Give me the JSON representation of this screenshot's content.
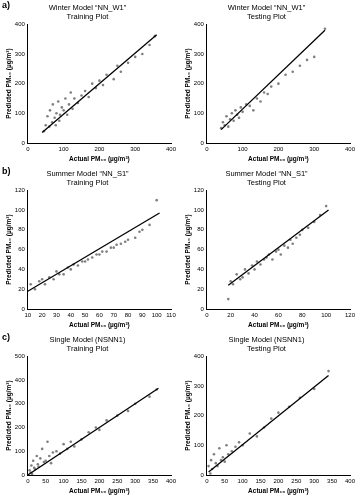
{
  "chart_data": [
    {
      "type": "scatter",
      "annotation": "a)",
      "title": [
        "Winter Model “NN_W1”",
        "Training Plot"
      ],
      "x_label": "Actual PM₁₀ (µg/m³)",
      "y_label": "Predicted PM₁₀ (µg/m³)",
      "xlim": [
        0,
        400
      ],
      "xticks": [
        0,
        100,
        200,
        300,
        400
      ],
      "ylim": [
        0,
        400
      ],
      "yticks": [
        0,
        100,
        200,
        300,
        400
      ],
      "grid": false,
      "series": [
        {
          "type": "scatter",
          "color": "#7f7f7f",
          "marker": "circle",
          "x": [
            45,
            50,
            55,
            60,
            62,
            68,
            70,
            75,
            78,
            80,
            85,
            88,
            90,
            95,
            100,
            105,
            110,
            115,
            120,
            125,
            130,
            140,
            150,
            160,
            170,
            180,
            190,
            200,
            210,
            220,
            240,
            250,
            260,
            280,
            300,
            320,
            340,
            355
          ],
          "values": [
            40,
            60,
            90,
            55,
            110,
            70,
            130,
            85,
            60,
            100,
            140,
            75,
            95,
            120,
            110,
            150,
            95,
            130,
            170,
            115,
            150,
            135,
            160,
            175,
            155,
            200,
            185,
            210,
            195,
            230,
            215,
            260,
            240,
            270,
            290,
            300,
            330,
            360
          ]
        },
        {
          "type": "line",
          "color": "#000000",
          "line_style": "solid",
          "x": [
            40,
            360
          ],
          "values": [
            35,
            365
          ]
        }
      ]
    },
    {
      "type": "scatter",
      "title": [
        "Winter Model “NN_W1”",
        "Testing Plot"
      ],
      "x_label": "Actual PM₁₀ (µg/m³)",
      "y_label": "Predicted PM₁₀ (µg/m³)",
      "xlim": [
        0,
        400
      ],
      "xticks": [
        0,
        100,
        200,
        300,
        400
      ],
      "ylim": [
        0,
        400
      ],
      "yticks": [
        0,
        100,
        200,
        300,
        400
      ],
      "grid": false,
      "series": [
        {
          "type": "scatter",
          "color": "#7f7f7f",
          "marker": "circle",
          "x": [
            40,
            45,
            50,
            55,
            60,
            65,
            70,
            75,
            80,
            85,
            90,
            95,
            100,
            110,
            120,
            130,
            140,
            150,
            160,
            170,
            180,
            200,
            220,
            240,
            260,
            280,
            300,
            330
          ],
          "values": [
            50,
            70,
            60,
            90,
            55,
            80,
            100,
            75,
            110,
            95,
            85,
            120,
            105,
            130,
            125,
            110,
            150,
            140,
            170,
            165,
            190,
            200,
            230,
            240,
            260,
            280,
            290,
            385
          ]
        },
        {
          "type": "line",
          "color": "#000000",
          "line_style": "solid",
          "x": [
            40,
            330
          ],
          "values": [
            45,
            380
          ]
        }
      ]
    },
    {
      "type": "scatter",
      "annotation": "b)",
      "title": [
        "Summer Model “NN_S1”",
        "Training Plot"
      ],
      "x_label": "Actual PM₁₀ (µg/m³)",
      "y_label": "Predicted PM₁₀ (µg/m³)",
      "xlim": [
        10,
        110
      ],
      "xticks": [
        10,
        20,
        30,
        40,
        50,
        60,
        70,
        80,
        90,
        100,
        110
      ],
      "ylim": [
        0,
        120
      ],
      "yticks": [
        0,
        20,
        40,
        60,
        80,
        100,
        120
      ],
      "grid": false,
      "series": [
        {
          "type": "scatter",
          "color": "#7f7f7f",
          "marker": "circle",
          "x": [
            12,
            15,
            18,
            20,
            22,
            25,
            28,
            30,
            32,
            35,
            38,
            40,
            42,
            45,
            48,
            50,
            52,
            55,
            58,
            60,
            62,
            65,
            68,
            70,
            72,
            75,
            78,
            80,
            85,
            88,
            90,
            95,
            100
          ],
          "values": [
            25,
            20,
            28,
            30,
            25,
            32,
            30,
            38,
            35,
            35,
            42,
            40,
            45,
            44,
            48,
            48,
            50,
            52,
            55,
            55,
            58,
            58,
            62,
            62,
            65,
            66,
            68,
            70,
            72,
            78,
            80,
            85,
            110
          ]
        },
        {
          "type": "line",
          "color": "#000000",
          "line_style": "solid",
          "x": [
            10,
            102
          ],
          "values": [
            18,
            97
          ]
        }
      ]
    },
    {
      "type": "scatter",
      "title": [
        "Summer Model “NN_S1”",
        "Testing Plot"
      ],
      "x_label": "Actual PM₁₀ (µg/m³)",
      "y_label": "Predicted PM₁₀ (µg/m³)",
      "xlim": [
        0,
        120
      ],
      "xticks": [
        0,
        20,
        40,
        60,
        80,
        100,
        120
      ],
      "ylim": [
        0,
        120
      ],
      "yticks": [
        0,
        20,
        40,
        60,
        80,
        100,
        120
      ],
      "grid": false,
      "series": [
        {
          "type": "scatter",
          "color": "#7f7f7f",
          "marker": "circle",
          "x": [
            18,
            20,
            22,
            25,
            28,
            30,
            32,
            35,
            38,
            40,
            42,
            45,
            48,
            50,
            52,
            55,
            58,
            60,
            62,
            65,
            68,
            70,
            72,
            75,
            78,
            80,
            85,
            90,
            95,
            100
          ],
          "values": [
            10,
            28,
            25,
            35,
            30,
            32,
            40,
            36,
            44,
            40,
            48,
            45,
            50,
            52,
            55,
            50,
            58,
            60,
            55,
            64,
            62,
            70,
            66,
            72,
            75,
            80,
            82,
            88,
            95,
            104
          ]
        },
        {
          "type": "line",
          "color": "#000000",
          "line_style": "solid",
          "x": [
            18,
            102
          ],
          "values": [
            24,
            100
          ]
        }
      ]
    },
    {
      "type": "scatter",
      "annotation": "c)",
      "title": [
        "Single Model (NSNN1)",
        "Training Plot"
      ],
      "x_label": "Actual PM₁₀ (µg/m³)",
      "y_label": "Predicted PM₁₀ (µg/m³)",
      "xlim": [
        0,
        400
      ],
      "xticks": [
        0,
        50,
        100,
        150,
        200,
        250,
        300,
        350,
        400
      ],
      "ylim": [
        0,
        500
      ],
      "yticks": [
        0,
        100,
        200,
        300,
        400,
        500
      ],
      "grid": false,
      "series": [
        {
          "type": "scatter",
          "color": "#7f7f7f",
          "marker": "circle",
          "x": [
            5,
            8,
            10,
            12,
            15,
            18,
            20,
            25,
            28,
            30,
            35,
            40,
            45,
            50,
            55,
            60,
            65,
            70,
            80,
            90,
            100,
            110,
            120,
            130,
            150,
            170,
            190,
            200,
            220,
            250,
            280,
            300,
            340,
            360
          ],
          "values": [
            20,
            10,
            40,
            5,
            60,
            30,
            25,
            80,
            45,
            35,
            70,
            110,
            55,
            60,
            140,
            80,
            50,
            95,
            100,
            90,
            130,
            110,
            140,
            120,
            150,
            180,
            200,
            190,
            230,
            250,
            270,
            300,
            330,
            360
          ]
        },
        {
          "type": "line",
          "color": "#000000",
          "line_style": "solid",
          "x": [
            0,
            365
          ],
          "values": [
            0,
            365
          ]
        }
      ]
    },
    {
      "type": "scatter",
      "title": [
        "Single Model (NSNN1)",
        "Testing Plot"
      ],
      "x_label": "Actual PM₁₀ (µg/m³)",
      "y_label": "Predicted PM₁₀ (µg/m³)",
      "xlim": [
        0,
        400
      ],
      "xticks": [
        0,
        50,
        100,
        150,
        200,
        250,
        300,
        350,
        400
      ],
      "ylim": [
        0,
        400
      ],
      "yticks": [
        0,
        100,
        200,
        300,
        400
      ],
      "grid": false,
      "series": [
        {
          "type": "scatter",
          "color": "#7f7f7f",
          "marker": "circle",
          "x": [
            5,
            10,
            12,
            15,
            20,
            25,
            30,
            35,
            40,
            45,
            50,
            55,
            60,
            70,
            80,
            90,
            100,
            120,
            140,
            160,
            180,
            200,
            230,
            260,
            300,
            340
          ],
          "values": [
            30,
            5,
            50,
            20,
            70,
            40,
            30,
            90,
            50,
            60,
            45,
            100,
            70,
            80,
            95,
            110,
            100,
            140,
            130,
            160,
            190,
            210,
            230,
            260,
            290,
            350
          ]
        },
        {
          "type": "line",
          "color": "#000000",
          "line_style": "solid",
          "x": [
            5,
            340
          ],
          "values": [
            10,
            335
          ]
        }
      ]
    }
  ]
}
